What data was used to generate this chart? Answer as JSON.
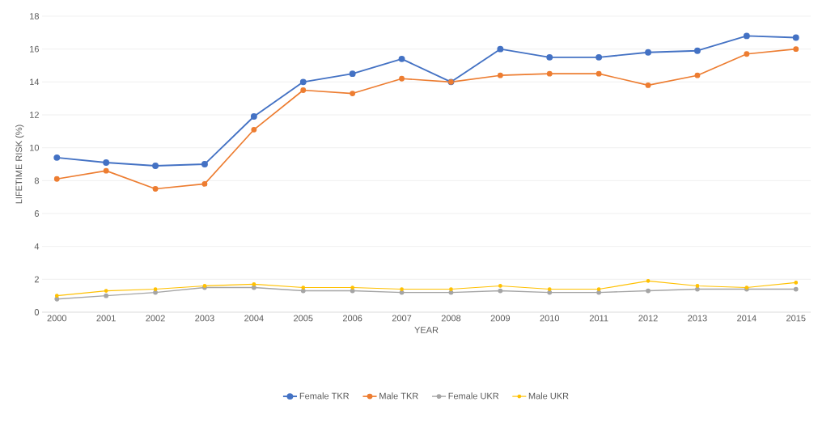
{
  "chart_data": {
    "type": "line",
    "xlabel": "YEAR",
    "ylabel": "LIFETIME RISK (%)",
    "categories": [
      "2000",
      "2001",
      "2002",
      "2003",
      "2004",
      "2005",
      "2006",
      "2007",
      "2008",
      "2009",
      "2010",
      "2011",
      "2012",
      "2013",
      "2014",
      "2015"
    ],
    "series": [
      {
        "name": "Female TKR",
        "color": "#4472c4",
        "values": [
          9.4,
          9.1,
          8.9,
          9.0,
          11.9,
          14.0,
          14.5,
          15.4,
          14.0,
          16.0,
          15.5,
          15.5,
          15.8,
          15.9,
          16.8,
          16.7
        ]
      },
      {
        "name": "Male TKR",
        "color": "#ed7d31",
        "values": [
          8.1,
          8.6,
          7.5,
          7.8,
          11.1,
          13.5,
          13.3,
          14.2,
          14.0,
          14.4,
          14.5,
          14.5,
          13.8,
          14.4,
          15.7,
          16.0
        ]
      },
      {
        "name": "Female UKR",
        "color": "#a5a5a5",
        "values": [
          0.8,
          1.0,
          1.2,
          1.5,
          1.5,
          1.3,
          1.3,
          1.2,
          1.2,
          1.3,
          1.2,
          1.2,
          1.3,
          1.4,
          1.4,
          1.4
        ]
      },
      {
        "name": "Male UKR",
        "color": "#ffc000",
        "values": [
          1.0,
          1.3,
          1.4,
          1.6,
          1.7,
          1.5,
          1.5,
          1.4,
          1.4,
          1.6,
          1.4,
          1.4,
          1.9,
          1.6,
          1.5,
          1.8
        ]
      }
    ],
    "ylim": [
      0,
      18
    ],
    "yticks": [
      0,
      2,
      4,
      6,
      8,
      10,
      12,
      14,
      16,
      18
    ],
    "grid": "y",
    "legend": "bottom",
    "marker": "circle",
    "line_style": "solid"
  }
}
